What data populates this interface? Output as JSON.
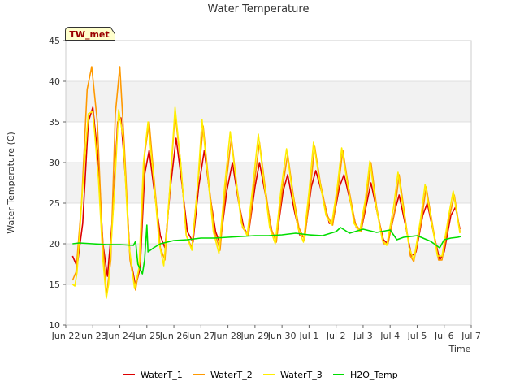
{
  "chart_data": {
    "type": "line",
    "title": "Water Temperature",
    "xlabel": "Time",
    "ylabel": "Water Temperature (C)",
    "site_label": "TW_met",
    "x_unit": "date (2023 is not shown; Jun 22 00:00 → Jul 7 00:00)",
    "xlim": [
      "Jun 22",
      "Jul 7"
    ],
    "ylim": [
      10,
      45
    ],
    "x_ticks": [
      "Jun 22",
      "Jun 23",
      "Jun 24",
      "Jun 25",
      "Jun 26",
      "Jun 27",
      "Jun 28",
      "Jun 29",
      "Jun 30",
      "Jul 1",
      "Jul 2",
      "Jul 3",
      "Jul 4",
      "Jul 5",
      "Jul 6",
      "Jul 7"
    ],
    "y_ticks": [
      10,
      15,
      20,
      25,
      30,
      35,
      40,
      45
    ],
    "grid": "horizontal bands",
    "legend_position": "bottom",
    "series": [
      {
        "name": "WaterT_1",
        "color": "#dd0000",
        "points": [
          [
            "Jun 22 06:00",
            18.5
          ],
          [
            "Jun 22 10:00",
            17.2
          ],
          [
            "Jun 22 15:00",
            22.5
          ],
          [
            "Jun 22 20:00",
            35.0
          ],
          [
            "Jun 23 00:00",
            36.8
          ],
          [
            "Jun 23 05:00",
            30.0
          ],
          [
            "Jun 23 09:00",
            20.0
          ],
          [
            "Jun 23 13:00",
            16.0
          ],
          [
            "Jun 23 18:00",
            24.0
          ],
          [
            "Jun 23 22:00",
            35.0
          ],
          [
            "Jun 24 01:00",
            35.5
          ],
          [
            "Jun 24 05:00",
            28.0
          ],
          [
            "Jun 24 09:00",
            18.5
          ],
          [
            "Jun 24 14:00",
            14.8
          ],
          [
            "Jun 24 18:00",
            17.0
          ],
          [
            "Jun 24 22:00",
            28.5
          ],
          [
            "Jun 25 02:00",
            31.5
          ],
          [
            "Jun 25 07:00",
            26.0
          ],
          [
            "Jun 25 12:00",
            21.0
          ],
          [
            "Jun 25 16:00",
            19.5
          ],
          [
            "Jun 25 21:00",
            27.0
          ],
          [
            "Jun 26 02:00",
            33.0
          ],
          [
            "Jun 26 07:00",
            27.5
          ],
          [
            "Jun 26 12:00",
            21.5
          ],
          [
            "Jun 26 17:00",
            20.2
          ],
          [
            "Jun 26 22:00",
            27.0
          ],
          [
            "Jun 27 03:00",
            31.5
          ],
          [
            "Jun 27 08:00",
            26.0
          ],
          [
            "Jun 27 13:00",
            21.5
          ],
          [
            "Jun 27 17:00",
            20.0
          ],
          [
            "Jun 27 23:00",
            26.5
          ],
          [
            "Jun 28 04:00",
            30.0
          ],
          [
            "Jun 28 09:00",
            25.5
          ],
          [
            "Jun 28 14:00",
            22.0
          ],
          [
            "Jun 28 18:00",
            21.0
          ],
          [
            "Jun 29 00:00",
            27.0
          ],
          [
            "Jun 29 04:00",
            30.0
          ],
          [
            "Jun 29 10:00",
            25.5
          ],
          [
            "Jun 29 15:00",
            21.5
          ],
          [
            "Jun 29 19:00",
            20.5
          ],
          [
            "Jun 30 01:00",
            26.5
          ],
          [
            "Jun 30 05:00",
            28.5
          ],
          [
            "Jun 30 11:00",
            24.0
          ],
          [
            "Jun 30 16:00",
            21.0
          ],
          [
            "Jun 30 20:00",
            20.8
          ],
          [
            "Jul 1 02:00",
            27.0
          ],
          [
            "Jul 1 06:00",
            29.0
          ],
          [
            "Jul 1 12:00",
            26.0
          ],
          [
            "Jul 1 18:00",
            22.5
          ],
          [
            "Jul 1 21:00",
            22.5
          ],
          [
            "Jul 2 03:00",
            27.0
          ],
          [
            "Jul 2 07:00",
            28.5
          ],
          [
            "Jul 2 13:00",
            25.0
          ],
          [
            "Jul 2 18:00",
            22.0
          ],
          [
            "Jul 2 22:00",
            21.5
          ],
          [
            "Jul 3 04:00",
            25.5
          ],
          [
            "Jul 3 07:00",
            27.5
          ],
          [
            "Jul 3 13:00",
            23.5
          ],
          [
            "Jul 3 18:00",
            20.5
          ],
          [
            "Jul 3 22:00",
            20.0
          ],
          [
            "Jul 4 05:00",
            24.5
          ],
          [
            "Jul 4 08:00",
            26.0
          ],
          [
            "Jul 4 14:00",
            22.0
          ],
          [
            "Jul 4 19:00",
            18.5
          ],
          [
            "Jul 4 23:00",
            19.0
          ],
          [
            "Jul 5 05:00",
            23.5
          ],
          [
            "Jul 5 09:00",
            25.0
          ],
          [
            "Jul 5 15:00",
            21.0
          ],
          [
            "Jul 5 20:00",
            18.0
          ],
          [
            "Jul 6 00:00",
            19.0
          ],
          [
            "Jul 6 06:00",
            23.5
          ],
          [
            "Jul 6 10:00",
            24.5
          ],
          [
            "Jul 6 14:00",
            21.8
          ]
        ]
      },
      {
        "name": "WaterT_2",
        "color": "#ff9900",
        "points": [
          [
            "Jun 22 06:00",
            15.5
          ],
          [
            "Jun 22 09:00",
            16.5
          ],
          [
            "Jun 22 14:00",
            25.0
          ],
          [
            "Jun 22 19:00",
            39.0
          ],
          [
            "Jun 22 23:00",
            41.8
          ],
          [
            "Jun 23 04:00",
            35.0
          ],
          [
            "Jun 23 08:00",
            22.0
          ],
          [
            "Jun 23 12:00",
            13.5
          ],
          [
            "Jun 23 16:00",
            18.0
          ],
          [
            "Jun 23 20:00",
            36.0
          ],
          [
            "Jun 24 00:00",
            41.8
          ],
          [
            "Jun 24 04:00",
            32.0
          ],
          [
            "Jun 24 09:00",
            18.0
          ],
          [
            "Jun 24 14:00",
            14.3
          ],
          [
            "Jun 24 18:00",
            18.0
          ],
          [
            "Jun 24 22:00",
            31.0
          ],
          [
            "Jun 25 02:00",
            35.0
          ],
          [
            "Jun 25 07:00",
            27.0
          ],
          [
            "Jun 25 12:00",
            19.5
          ],
          [
            "Jun 25 16:00",
            18.0
          ],
          [
            "Jun 25 20:00",
            26.0
          ],
          [
            "Jun 26 01:00",
            36.0
          ],
          [
            "Jun 26 06:00",
            30.0
          ],
          [
            "Jun 26 11:00",
            21.0
          ],
          [
            "Jun 26 16:00",
            19.5
          ],
          [
            "Jun 26 21:00",
            27.0
          ],
          [
            "Jun 27 02:00",
            34.5
          ],
          [
            "Jun 27 07:00",
            27.5
          ],
          [
            "Jun 27 12:00",
            21.5
          ],
          [
            "Jun 27 17:00",
            19.2
          ],
          [
            "Jun 27 22:00",
            27.0
          ],
          [
            "Jun 28 03:00",
            33.0
          ],
          [
            "Jun 28 08:00",
            27.0
          ],
          [
            "Jun 28 13:00",
            22.0
          ],
          [
            "Jun 28 18:00",
            21.0
          ],
          [
            "Jun 28 23:00",
            27.0
          ],
          [
            "Jun 29 04:00",
            32.5
          ],
          [
            "Jun 29 09:00",
            27.0
          ],
          [
            "Jun 29 14:00",
            22.0
          ],
          [
            "Jun 29 19:00",
            20.2
          ],
          [
            "Jun 30 00:00",
            26.5
          ],
          [
            "Jun 30 05:00",
            31.0
          ],
          [
            "Jun 30 10:00",
            26.0
          ],
          [
            "Jun 30 15:00",
            22.0
          ],
          [
            "Jun 30 20:00",
            20.5
          ],
          [
            "Jul 1 01:00",
            26.5
          ],
          [
            "Jul 1 05:00",
            32.0
          ],
          [
            "Jul 1 10:00",
            27.5
          ],
          [
            "Jul 1 16:00",
            23.5
          ],
          [
            "Jul 1 21:00",
            22.3
          ],
          [
            "Jul 2 02:00",
            27.0
          ],
          [
            "Jul 2 06:00",
            31.5
          ],
          [
            "Jul 2 11:00",
            27.0
          ],
          [
            "Jul 2 17:00",
            22.5
          ],
          [
            "Jul 2 22:00",
            21.5
          ],
          [
            "Jul 3 03:00",
            25.5
          ],
          [
            "Jul 3 07:00",
            30.0
          ],
          [
            "Jul 3 12:00",
            24.5
          ],
          [
            "Jul 3 18:00",
            20.0
          ],
          [
            "Jul 3 22:00",
            20.0
          ],
          [
            "Jul 4 04:00",
            24.0
          ],
          [
            "Jul 4 08:00",
            28.5
          ],
          [
            "Jul 4 13:00",
            23.5
          ],
          [
            "Jul 4 18:00",
            18.5
          ],
          [
            "Jul 4 21:00",
            17.8
          ],
          [
            "Jul 5 04:00",
            23.0
          ],
          [
            "Jul 5 08:00",
            27.0
          ],
          [
            "Jul 5 14:00",
            22.0
          ],
          [
            "Jul 5 19:00",
            18.0
          ],
          [
            "Jul 5 22:00",
            18.0
          ],
          [
            "Jul 6 05:00",
            23.5
          ],
          [
            "Jul 6 09:00",
            26.0
          ],
          [
            "Jul 6 14:00",
            21.5
          ]
        ]
      },
      {
        "name": "WaterT_3",
        "color": "#ffee00",
        "points": [
          [
            "Jun 22 06:00",
            15.0
          ],
          [
            "Jun 22 08:00",
            14.8
          ],
          [
            "Jun 22 10:00",
            16.5
          ],
          [
            "Jun 22 15:00",
            27.0
          ],
          [
            "Jun 22 20:00",
            36.0
          ],
          [
            "Jun 23 00:00",
            36.3
          ],
          [
            "Jun 23 05:00",
            28.0
          ],
          [
            "Jun 23 09:00",
            18.0
          ],
          [
            "Jun 23 12:00",
            13.3
          ],
          [
            "Jun 23 14:00",
            15.0
          ],
          [
            "Jun 23 19:00",
            26.0
          ],
          [
            "Jun 23 23:00",
            36.5
          ],
          [
            "Jun 24 03:00",
            33.0
          ],
          [
            "Jun 24 08:00",
            20.0
          ],
          [
            "Jun 24 13:00",
            14.5
          ],
          [
            "Jun 24 17:00",
            17.0
          ],
          [
            "Jun 24 21:00",
            30.0
          ],
          [
            "Jun 25 01:00",
            35.0
          ],
          [
            "Jun 25 06:00",
            28.0
          ],
          [
            "Jun 25 11:00",
            20.0
          ],
          [
            "Jun 25 15:00",
            17.3
          ],
          [
            "Jun 25 20:00",
            26.0
          ],
          [
            "Jun 26 01:00",
            36.8
          ],
          [
            "Jun 26 06:00",
            30.0
          ],
          [
            "Jun 26 11:00",
            21.0
          ],
          [
            "Jun 26 16:00",
            19.2
          ],
          [
            "Jun 26 21:00",
            27.0
          ],
          [
            "Jun 27 01:00",
            35.3
          ],
          [
            "Jun 27 06:00",
            28.5
          ],
          [
            "Jun 27 11:00",
            21.5
          ],
          [
            "Jun 27 16:00",
            18.8
          ],
          [
            "Jun 27 21:00",
            27.0
          ],
          [
            "Jun 28 02:00",
            33.8
          ],
          [
            "Jun 28 07:00",
            28.0
          ],
          [
            "Jun 28 12:00",
            22.5
          ],
          [
            "Jun 28 17:00",
            21.0
          ],
          [
            "Jun 28 22:00",
            27.0
          ],
          [
            "Jun 29 03:00",
            33.5
          ],
          [
            "Jun 29 08:00",
            27.5
          ],
          [
            "Jun 29 13:00",
            22.0
          ],
          [
            "Jun 29 18:00",
            20.0
          ],
          [
            "Jun 29 23:00",
            26.5
          ],
          [
            "Jun 30 04:00",
            31.7
          ],
          [
            "Jun 30 09:00",
            26.5
          ],
          [
            "Jun 30 14:00",
            22.0
          ],
          [
            "Jun 30 19:00",
            20.2
          ],
          [
            "Jul 1 00:00",
            26.5
          ],
          [
            "Jul 1 04:00",
            32.5
          ],
          [
            "Jul 1 09:00",
            28.0
          ],
          [
            "Jul 1 15:00",
            23.5
          ],
          [
            "Jul 1 20:00",
            22.3
          ],
          [
            "Jul 2 01:00",
            27.0
          ],
          [
            "Jul 2 05:00",
            31.8
          ],
          [
            "Jul 2 10:00",
            27.5
          ],
          [
            "Jul 2 16:00",
            22.5
          ],
          [
            "Jul 2 21:00",
            21.5
          ],
          [
            "Jul 3 02:00",
            25.5
          ],
          [
            "Jul 3 06:00",
            30.2
          ],
          [
            "Jul 3 11:00",
            25.0
          ],
          [
            "Jul 3 17:00",
            20.5
          ],
          [
            "Jul 3 21:00",
            19.8
          ],
          [
            "Jul 4 03:00",
            24.5
          ],
          [
            "Jul 4 07:00",
            28.8
          ],
          [
            "Jul 4 12:00",
            24.0
          ],
          [
            "Jul 4 17:00",
            19.5
          ],
          [
            "Jul 4 21:00",
            18.0
          ],
          [
            "Jul 5 03:00",
            23.0
          ],
          [
            "Jul 5 07:00",
            27.3
          ],
          [
            "Jul 5 13:00",
            22.5
          ],
          [
            "Jul 5 18:00",
            18.5
          ],
          [
            "Jul 5 22:00",
            18.5
          ],
          [
            "Jul 6 04:00",
            23.5
          ],
          [
            "Jul 6 08:00",
            26.5
          ],
          [
            "Jul 6 14:00",
            21.3
          ]
        ]
      },
      {
        "name": "H2O_Temp",
        "color": "#00dd00",
        "points": [
          [
            "Jun 22 06:00",
            20.0
          ],
          [
            "Jun 22 12:00",
            20.1
          ],
          [
            "Jun 23 00:00",
            20.0
          ],
          [
            "Jun 23 12:00",
            19.9
          ],
          [
            "Jun 24 00:00",
            19.9
          ],
          [
            "Jun 24 12:00",
            19.8
          ],
          [
            "Jun 24 14:00",
            20.3
          ],
          [
            "Jun 24 16:00",
            17.5
          ],
          [
            "Jun 24 20:00",
            16.3
          ],
          [
            "Jun 24 22:00",
            18.0
          ],
          [
            "Jun 25 00:00",
            22.3
          ],
          [
            "Jun 25 01:00",
            19.0
          ],
          [
            "Jun 25 06:00",
            19.5
          ],
          [
            "Jun 25 12:00",
            20.0
          ],
          [
            "Jun 26 00:00",
            20.4
          ],
          [
            "Jun 26 12:00",
            20.5
          ],
          [
            "Jun 27 00:00",
            20.7
          ],
          [
            "Jun 27 12:00",
            20.7
          ],
          [
            "Jun 28 00:00",
            20.8
          ],
          [
            "Jun 28 12:00",
            20.9
          ],
          [
            "Jun 29 00:00",
            21.0
          ],
          [
            "Jun 29 12:00",
            21.0
          ],
          [
            "Jun 30 00:00",
            21.1
          ],
          [
            "Jun 30 12:00",
            21.3
          ],
          [
            "Jul 1 00:00",
            21.1
          ],
          [
            "Jul 1 12:00",
            21.0
          ],
          [
            "Jul 2 00:00",
            21.5
          ],
          [
            "Jul 2 04:00",
            22.0
          ],
          [
            "Jul 2 12:00",
            21.3
          ],
          [
            "Jul 3 00:00",
            21.8
          ],
          [
            "Jul 3 12:00",
            21.4
          ],
          [
            "Jul 4 00:00",
            21.7
          ],
          [
            "Jul 4 06:00",
            20.5
          ],
          [
            "Jul 4 12:00",
            20.8
          ],
          [
            "Jul 5 00:00",
            21.0
          ],
          [
            "Jul 5 12:00",
            20.3
          ],
          [
            "Jul 5 20:00",
            19.5
          ],
          [
            "Jul 6 00:00",
            20.5
          ],
          [
            "Jul 6 06:00",
            20.7
          ],
          [
            "Jul 6 12:00",
            20.8
          ],
          [
            "Jul 6 15:00",
            20.9
          ]
        ]
      }
    ]
  }
}
